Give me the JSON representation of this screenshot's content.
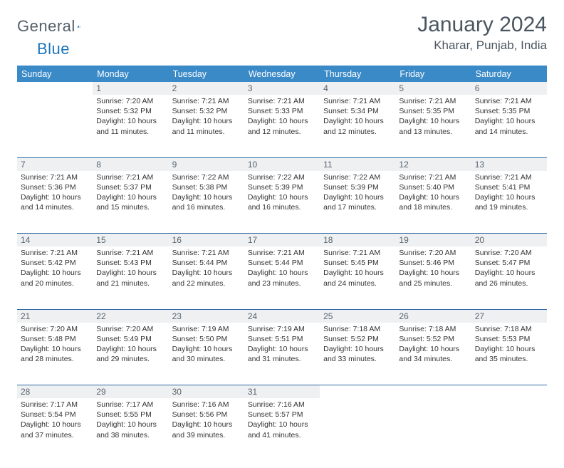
{
  "brand": {
    "name_a": "General",
    "name_b": "Blue"
  },
  "title": "January 2024",
  "location": "Kharar, Punjab, India",
  "colors": {
    "header_bg": "#3a8ac8",
    "header_text": "#ffffff",
    "row_sep": "#2f6aa1",
    "daynum_bg": "#eef0f2",
    "text": "#333333",
    "title_text": "#4a5660",
    "brand_accent": "#1c76bc"
  },
  "day_headers": [
    "Sunday",
    "Monday",
    "Tuesday",
    "Wednesday",
    "Thursday",
    "Friday",
    "Saturday"
  ],
  "weeks": [
    [
      {
        "n": "",
        "sunrise": "",
        "sunset": "",
        "daylight": ""
      },
      {
        "n": "1",
        "sunrise": "7:20 AM",
        "sunset": "5:32 PM",
        "daylight": "10 hours and 11 minutes."
      },
      {
        "n": "2",
        "sunrise": "7:21 AM",
        "sunset": "5:32 PM",
        "daylight": "10 hours and 11 minutes."
      },
      {
        "n": "3",
        "sunrise": "7:21 AM",
        "sunset": "5:33 PM",
        "daylight": "10 hours and 12 minutes."
      },
      {
        "n": "4",
        "sunrise": "7:21 AM",
        "sunset": "5:34 PM",
        "daylight": "10 hours and 12 minutes."
      },
      {
        "n": "5",
        "sunrise": "7:21 AM",
        "sunset": "5:35 PM",
        "daylight": "10 hours and 13 minutes."
      },
      {
        "n": "6",
        "sunrise": "7:21 AM",
        "sunset": "5:35 PM",
        "daylight": "10 hours and 14 minutes."
      }
    ],
    [
      {
        "n": "7",
        "sunrise": "7:21 AM",
        "sunset": "5:36 PM",
        "daylight": "10 hours and 14 minutes."
      },
      {
        "n": "8",
        "sunrise": "7:21 AM",
        "sunset": "5:37 PM",
        "daylight": "10 hours and 15 minutes."
      },
      {
        "n": "9",
        "sunrise": "7:22 AM",
        "sunset": "5:38 PM",
        "daylight": "10 hours and 16 minutes."
      },
      {
        "n": "10",
        "sunrise": "7:22 AM",
        "sunset": "5:39 PM",
        "daylight": "10 hours and 16 minutes."
      },
      {
        "n": "11",
        "sunrise": "7:22 AM",
        "sunset": "5:39 PM",
        "daylight": "10 hours and 17 minutes."
      },
      {
        "n": "12",
        "sunrise": "7:21 AM",
        "sunset": "5:40 PM",
        "daylight": "10 hours and 18 minutes."
      },
      {
        "n": "13",
        "sunrise": "7:21 AM",
        "sunset": "5:41 PM",
        "daylight": "10 hours and 19 minutes."
      }
    ],
    [
      {
        "n": "14",
        "sunrise": "7:21 AM",
        "sunset": "5:42 PM",
        "daylight": "10 hours and 20 minutes."
      },
      {
        "n": "15",
        "sunrise": "7:21 AM",
        "sunset": "5:43 PM",
        "daylight": "10 hours and 21 minutes."
      },
      {
        "n": "16",
        "sunrise": "7:21 AM",
        "sunset": "5:44 PM",
        "daylight": "10 hours and 22 minutes."
      },
      {
        "n": "17",
        "sunrise": "7:21 AM",
        "sunset": "5:44 PM",
        "daylight": "10 hours and 23 minutes."
      },
      {
        "n": "18",
        "sunrise": "7:21 AM",
        "sunset": "5:45 PM",
        "daylight": "10 hours and 24 minutes."
      },
      {
        "n": "19",
        "sunrise": "7:20 AM",
        "sunset": "5:46 PM",
        "daylight": "10 hours and 25 minutes."
      },
      {
        "n": "20",
        "sunrise": "7:20 AM",
        "sunset": "5:47 PM",
        "daylight": "10 hours and 26 minutes."
      }
    ],
    [
      {
        "n": "21",
        "sunrise": "7:20 AM",
        "sunset": "5:48 PM",
        "daylight": "10 hours and 28 minutes."
      },
      {
        "n": "22",
        "sunrise": "7:20 AM",
        "sunset": "5:49 PM",
        "daylight": "10 hours and 29 minutes."
      },
      {
        "n": "23",
        "sunrise": "7:19 AM",
        "sunset": "5:50 PM",
        "daylight": "10 hours and 30 minutes."
      },
      {
        "n": "24",
        "sunrise": "7:19 AM",
        "sunset": "5:51 PM",
        "daylight": "10 hours and 31 minutes."
      },
      {
        "n": "25",
        "sunrise": "7:18 AM",
        "sunset": "5:52 PM",
        "daylight": "10 hours and 33 minutes."
      },
      {
        "n": "26",
        "sunrise": "7:18 AM",
        "sunset": "5:52 PM",
        "daylight": "10 hours and 34 minutes."
      },
      {
        "n": "27",
        "sunrise": "7:18 AM",
        "sunset": "5:53 PM",
        "daylight": "10 hours and 35 minutes."
      }
    ],
    [
      {
        "n": "28",
        "sunrise": "7:17 AM",
        "sunset": "5:54 PM",
        "daylight": "10 hours and 37 minutes."
      },
      {
        "n": "29",
        "sunrise": "7:17 AM",
        "sunset": "5:55 PM",
        "daylight": "10 hours and 38 minutes."
      },
      {
        "n": "30",
        "sunrise": "7:16 AM",
        "sunset": "5:56 PM",
        "daylight": "10 hours and 39 minutes."
      },
      {
        "n": "31",
        "sunrise": "7:16 AM",
        "sunset": "5:57 PM",
        "daylight": "10 hours and 41 minutes."
      },
      {
        "n": "",
        "sunrise": "",
        "sunset": "",
        "daylight": ""
      },
      {
        "n": "",
        "sunrise": "",
        "sunset": "",
        "daylight": ""
      },
      {
        "n": "",
        "sunrise": "",
        "sunset": "",
        "daylight": ""
      }
    ]
  ],
  "labels": {
    "sunrise": "Sunrise:",
    "sunset": "Sunset:",
    "daylight": "Daylight:"
  }
}
